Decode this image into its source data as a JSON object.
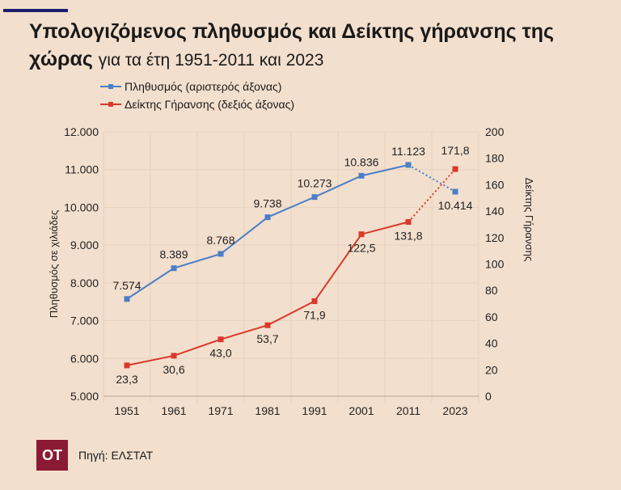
{
  "header": {
    "title_bold": "Υπολογιζόμενος πληθυσμός και Δείκτης γήρανσης της χώρας",
    "title_rest": "για τα έτη 1951-2011 και 2023"
  },
  "footer": {
    "logo": "ΟΤ",
    "source": "Πηγή: ΕΛΣΤΑΤ"
  },
  "chart_data": {
    "type": "line",
    "categories": [
      "1951",
      "1961",
      "1971",
      "1981",
      "1991",
      "2001",
      "2011",
      "2023"
    ],
    "series": [
      {
        "name": "Πληθυσμός (αριστερός άξονας)",
        "axis": "left",
        "color": "#4a7fc8",
        "values": [
          7574,
          8389,
          8768,
          9738,
          10273,
          10836,
          11123,
          10414
        ],
        "labels": [
          "7.574",
          "8.389",
          "8.768",
          "9.738",
          "10.273",
          "10.836",
          "11.123",
          "10.414"
        ],
        "dotted_last_segment": true
      },
      {
        "name": "Δείκτης Γήρανσης (δεξιός άξονας)",
        "axis": "right",
        "color": "#d8392b",
        "values": [
          23.3,
          30.6,
          43.0,
          53.7,
          71.9,
          122.5,
          131.8,
          171.8
        ],
        "labels": [
          "23,3",
          "30,6",
          "43,0",
          "53,7",
          "71,9",
          "122,5",
          "131,8",
          "171,8"
        ],
        "dotted_last_segment": true
      }
    ],
    "ylabel_left": "Πληθυσμός σε χιλιάδες",
    "ylabel_right": "Δείκτης Γήρανσης",
    "ylim_left": [
      5000,
      12000
    ],
    "yticks_left": [
      "5.000",
      "6.000",
      "7.000",
      "8.000",
      "9.000",
      "10.000",
      "11.000",
      "12.000"
    ],
    "ylim_right": [
      0,
      200
    ],
    "yticks_right": [
      "0",
      "20",
      "40",
      "60",
      "80",
      "100",
      "120",
      "140",
      "160",
      "180",
      "200"
    ],
    "grid": true,
    "legend": "top-left"
  }
}
